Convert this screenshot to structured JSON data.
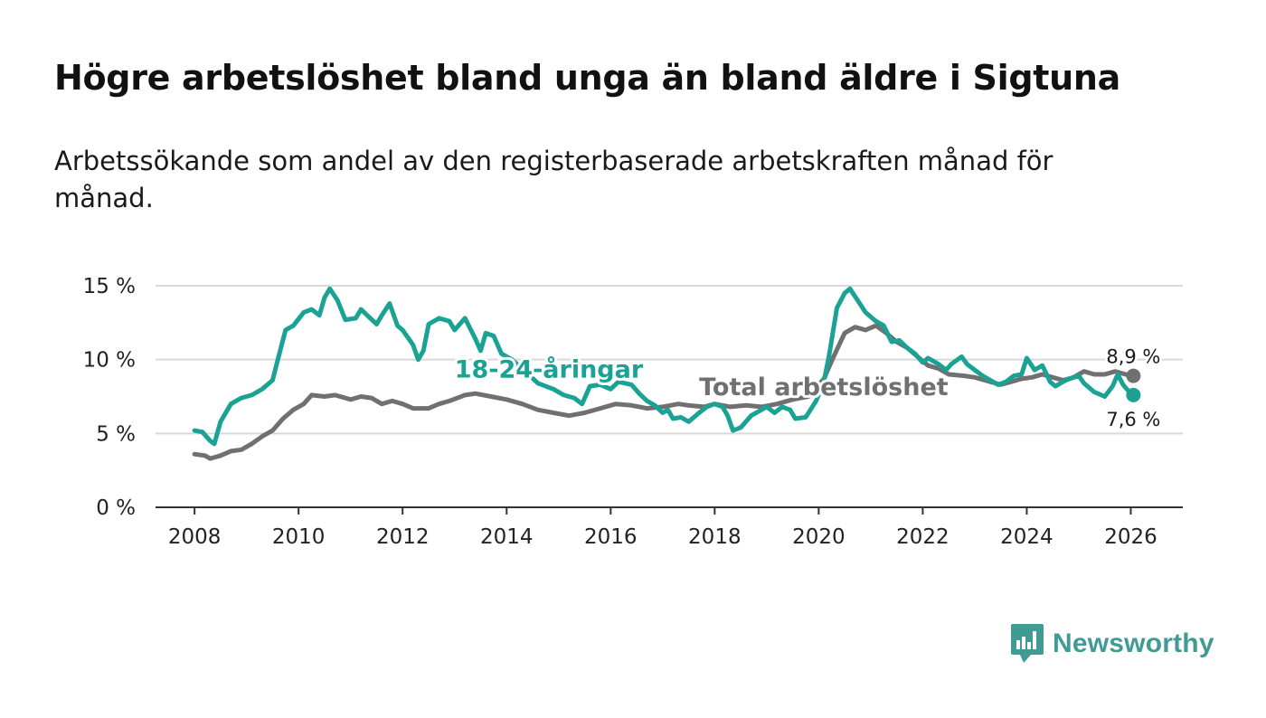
{
  "title": "Högre arbetslöshet bland unga än bland äldre i Sigtuna",
  "subtitle": "Arbetssökande som andel av den registerbaserade arbetskraften månad för månad.",
  "brand": {
    "name": "Newsworthy",
    "icon": "bar-chart-speech-bubble-icon",
    "color": "#3f9b93"
  },
  "chart_data": {
    "type": "line",
    "xlabel": "",
    "ylabel": "",
    "xlim": [
      2007.25,
      2027.0
    ],
    "ylim": [
      0,
      15
    ],
    "x_ticks": [
      2008,
      2010,
      2012,
      2014,
      2016,
      2018,
      2020,
      2022,
      2024,
      2026
    ],
    "y_ticks": [
      0,
      5,
      10,
      15
    ],
    "y_tick_labels": [
      "0 %",
      "5 %",
      "10 %",
      "15 %"
    ],
    "grid": "horizontal",
    "legend": "inline labels",
    "series": [
      {
        "name": "Total arbetslöshet",
        "color": "#707070",
        "end_label": "8,9 %",
        "label_anchor": [
          2017.7,
          7.6
        ],
        "points": [
          [
            2008.0,
            3.6
          ],
          [
            2008.2,
            3.5
          ],
          [
            2008.3,
            3.3
          ],
          [
            2008.5,
            3.5
          ],
          [
            2008.7,
            3.8
          ],
          [
            2008.9,
            3.9
          ],
          [
            2009.1,
            4.3
          ],
          [
            2009.3,
            4.8
          ],
          [
            2009.5,
            5.2
          ],
          [
            2009.7,
            6.0
          ],
          [
            2009.9,
            6.6
          ],
          [
            2010.1,
            7.0
          ],
          [
            2010.25,
            7.6
          ],
          [
            2010.5,
            7.5
          ],
          [
            2010.7,
            7.6
          ],
          [
            2010.9,
            7.4
          ],
          [
            2011.0,
            7.3
          ],
          [
            2011.2,
            7.5
          ],
          [
            2011.4,
            7.4
          ],
          [
            2011.6,
            7.0
          ],
          [
            2011.8,
            7.2
          ],
          [
            2012.0,
            7.0
          ],
          [
            2012.2,
            6.7
          ],
          [
            2012.5,
            6.7
          ],
          [
            2012.7,
            7.0
          ],
          [
            2012.9,
            7.2
          ],
          [
            2013.2,
            7.6
          ],
          [
            2013.4,
            7.7
          ],
          [
            2013.7,
            7.5
          ],
          [
            2014.0,
            7.3
          ],
          [
            2014.3,
            7.0
          ],
          [
            2014.6,
            6.6
          ],
          [
            2014.9,
            6.4
          ],
          [
            2015.2,
            6.2
          ],
          [
            2015.5,
            6.4
          ],
          [
            2015.8,
            6.7
          ],
          [
            2016.1,
            7.0
          ],
          [
            2016.4,
            6.9
          ],
          [
            2016.7,
            6.7
          ],
          [
            2017.0,
            6.8
          ],
          [
            2017.3,
            7.0
          ],
          [
            2017.5,
            6.9
          ],
          [
            2017.8,
            6.8
          ],
          [
            2018.0,
            7.0
          ],
          [
            2018.3,
            6.8
          ],
          [
            2018.6,
            6.9
          ],
          [
            2018.9,
            6.8
          ],
          [
            2019.2,
            7.0
          ],
          [
            2019.5,
            7.3
          ],
          [
            2019.8,
            7.5
          ],
          [
            2020.1,
            8.7
          ],
          [
            2020.3,
            10.3
          ],
          [
            2020.5,
            11.8
          ],
          [
            2020.7,
            12.2
          ],
          [
            2020.9,
            12.0
          ],
          [
            2021.1,
            12.3
          ],
          [
            2021.3,
            11.8
          ],
          [
            2021.5,
            11.2
          ],
          [
            2021.7,
            10.8
          ],
          [
            2021.9,
            10.2
          ],
          [
            2022.1,
            9.6
          ],
          [
            2022.3,
            9.4
          ],
          [
            2022.5,
            9.0
          ],
          [
            2022.8,
            8.9
          ],
          [
            2023.0,
            8.8
          ],
          [
            2023.3,
            8.5
          ],
          [
            2023.5,
            8.3
          ],
          [
            2023.7,
            8.5
          ],
          [
            2023.9,
            8.7
          ],
          [
            2024.1,
            8.8
          ],
          [
            2024.3,
            9.0
          ],
          [
            2024.5,
            8.8
          ],
          [
            2024.7,
            8.6
          ],
          [
            2024.9,
            8.8
          ],
          [
            2025.1,
            9.2
          ],
          [
            2025.3,
            9.0
          ],
          [
            2025.5,
            9.0
          ],
          [
            2025.7,
            9.2
          ],
          [
            2025.9,
            9.0
          ],
          [
            2026.05,
            8.9
          ]
        ]
      },
      {
        "name": "18-24-åringar",
        "color": "#1aa394",
        "end_label": "7,6 %",
        "label_anchor": [
          2013.0,
          8.8
        ],
        "points": [
          [
            2008.0,
            5.2
          ],
          [
            2008.15,
            5.1
          ],
          [
            2008.3,
            4.5
          ],
          [
            2008.38,
            4.3
          ],
          [
            2008.5,
            5.8
          ],
          [
            2008.7,
            7.0
          ],
          [
            2008.9,
            7.4
          ],
          [
            2009.1,
            7.6
          ],
          [
            2009.3,
            8.0
          ],
          [
            2009.5,
            8.6
          ],
          [
            2009.6,
            10.0
          ],
          [
            2009.75,
            12.0
          ],
          [
            2009.9,
            12.3
          ],
          [
            2010.1,
            13.2
          ],
          [
            2010.25,
            13.4
          ],
          [
            2010.4,
            13.0
          ],
          [
            2010.5,
            14.2
          ],
          [
            2010.6,
            14.8
          ],
          [
            2010.75,
            14.0
          ],
          [
            2010.9,
            12.7
          ],
          [
            2011.1,
            12.8
          ],
          [
            2011.2,
            13.4
          ],
          [
            2011.35,
            12.9
          ],
          [
            2011.5,
            12.4
          ],
          [
            2011.6,
            13.0
          ],
          [
            2011.75,
            13.8
          ],
          [
            2011.9,
            12.3
          ],
          [
            2012.0,
            12.0
          ],
          [
            2012.1,
            11.5
          ],
          [
            2012.2,
            11.0
          ],
          [
            2012.3,
            10.0
          ],
          [
            2012.4,
            10.6
          ],
          [
            2012.5,
            12.4
          ],
          [
            2012.7,
            12.8
          ],
          [
            2012.9,
            12.6
          ],
          [
            2013.0,
            12.0
          ],
          [
            2013.2,
            12.8
          ],
          [
            2013.4,
            11.4
          ],
          [
            2013.5,
            10.6
          ],
          [
            2013.6,
            11.8
          ],
          [
            2013.75,
            11.6
          ],
          [
            2013.9,
            10.4
          ],
          [
            2014.1,
            10.0
          ],
          [
            2014.3,
            9.4
          ],
          [
            2014.6,
            8.4
          ],
          [
            2014.9,
            8.0
          ],
          [
            2015.1,
            7.6
          ],
          [
            2015.3,
            7.4
          ],
          [
            2015.45,
            7.0
          ],
          [
            2015.6,
            8.2
          ],
          [
            2015.8,
            8.3
          ],
          [
            2016.0,
            8.0
          ],
          [
            2016.15,
            8.5
          ],
          [
            2016.4,
            8.3
          ],
          [
            2016.55,
            7.7
          ],
          [
            2016.7,
            7.2
          ],
          [
            2016.85,
            6.9
          ],
          [
            2017.0,
            6.4
          ],
          [
            2017.1,
            6.6
          ],
          [
            2017.2,
            6.0
          ],
          [
            2017.35,
            6.1
          ],
          [
            2017.5,
            5.8
          ],
          [
            2017.7,
            6.4
          ],
          [
            2017.85,
            6.8
          ],
          [
            2018.0,
            7.0
          ],
          [
            2018.15,
            6.8
          ],
          [
            2018.25,
            6.2
          ],
          [
            2018.35,
            5.2
          ],
          [
            2018.5,
            5.4
          ],
          [
            2018.7,
            6.2
          ],
          [
            2018.85,
            6.5
          ],
          [
            2019.0,
            6.8
          ],
          [
            2019.15,
            6.4
          ],
          [
            2019.3,
            6.8
          ],
          [
            2019.45,
            6.6
          ],
          [
            2019.55,
            6.0
          ],
          [
            2019.75,
            6.1
          ],
          [
            2019.95,
            7.2
          ],
          [
            2020.1,
            8.5
          ],
          [
            2020.2,
            10.3
          ],
          [
            2020.35,
            13.5
          ],
          [
            2020.5,
            14.5
          ],
          [
            2020.6,
            14.8
          ],
          [
            2020.75,
            14.0
          ],
          [
            2020.9,
            13.2
          ],
          [
            2021.1,
            12.6
          ],
          [
            2021.25,
            12.3
          ],
          [
            2021.4,
            11.2
          ],
          [
            2021.55,
            11.3
          ],
          [
            2021.7,
            10.8
          ],
          [
            2021.85,
            10.4
          ],
          [
            2022.0,
            9.8
          ],
          [
            2022.1,
            10.1
          ],
          [
            2022.3,
            9.7
          ],
          [
            2022.45,
            9.3
          ],
          [
            2022.55,
            9.7
          ],
          [
            2022.75,
            10.2
          ],
          [
            2022.85,
            9.7
          ],
          [
            2023.0,
            9.3
          ],
          [
            2023.15,
            8.9
          ],
          [
            2023.3,
            8.6
          ],
          [
            2023.45,
            8.3
          ],
          [
            2023.6,
            8.5
          ],
          [
            2023.75,
            8.9
          ],
          [
            2023.9,
            9.0
          ],
          [
            2024.0,
            10.1
          ],
          [
            2024.15,
            9.3
          ],
          [
            2024.3,
            9.6
          ],
          [
            2024.45,
            8.5
          ],
          [
            2024.55,
            8.2
          ],
          [
            2024.75,
            8.6
          ],
          [
            2024.9,
            8.8
          ],
          [
            2025.0,
            8.9
          ],
          [
            2025.1,
            8.4
          ],
          [
            2025.3,
            7.8
          ],
          [
            2025.5,
            7.5
          ],
          [
            2025.65,
            8.2
          ],
          [
            2025.75,
            9.0
          ],
          [
            2025.85,
            8.3
          ],
          [
            2025.95,
            7.9
          ],
          [
            2026.05,
            7.6
          ]
        ]
      }
    ]
  }
}
